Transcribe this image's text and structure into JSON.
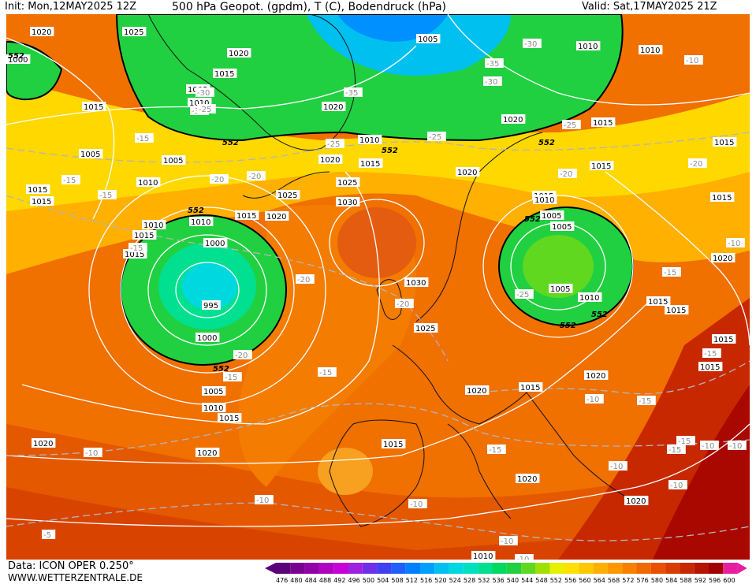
{
  "header": {
    "init": "Init: Mon,12MAY2025 12Z",
    "title": "500 hPa Geopot. (gpdm), T (C), Bodendruck (hPa)",
    "valid": "Valid: Sat,17MAY2025 21Z"
  },
  "footer": {
    "data": "Data: ICON OPER 0.250°",
    "site": "WWW.WETTERZENTRALE.DE"
  },
  "legend": {
    "ticks": [
      "476",
      "480",
      "484",
      "488",
      "492",
      "496",
      "500",
      "504",
      "508",
      "512",
      "516",
      "520",
      "524",
      "528",
      "532",
      "536",
      "540",
      "544",
      "548",
      "552",
      "556",
      "560",
      "564",
      "568",
      "572",
      "576",
      "580",
      "584",
      "588",
      "592",
      "596",
      "600"
    ],
    "colors": [
      "#5a007a",
      "#7a0090",
      "#9400a8",
      "#b000c0",
      "#c800d8",
      "#a020e0",
      "#7030e8",
      "#4040f0",
      "#2060f8",
      "#0080ff",
      "#00a0ff",
      "#00c0f0",
      "#00d8e0",
      "#00e0c0",
      "#00e090",
      "#00d860",
      "#20d040",
      "#60d820",
      "#a0e000",
      "#e8f000",
      "#ffe000",
      "#ffc800",
      "#ffb000",
      "#ff9800",
      "#f88000",
      "#f06800",
      "#e85000",
      "#d83c00",
      "#c82800",
      "#b41400",
      "#a00000",
      "#e81ea0"
    ]
  },
  "pressure_labels": [
    {
      "text": "1025"
    },
    {
      "text": "1020"
    },
    {
      "text": "1005"
    },
    {
      "text": "1010"
    },
    {
      "text": "1015"
    },
    {
      "text": "1005"
    },
    {
      "text": "1010"
    },
    {
      "text": "1015"
    },
    {
      "text": "1000"
    },
    {
      "text": "1005"
    },
    {
      "text": "1010"
    },
    {
      "text": "1015"
    },
    {
      "text": "1025"
    },
    {
      "text": "1030"
    },
    {
      "text": "1020"
    },
    {
      "text": "1025"
    },
    {
      "text": "1020"
    },
    {
      "text": "1010"
    },
    {
      "text": "1015"
    },
    {
      "text": "1005"
    },
    {
      "text": "1010"
    },
    {
      "text": "1010"
    },
    {
      "text": "1015"
    },
    {
      "text": "1000"
    },
    {
      "text": "995"
    },
    {
      "text": "1000"
    },
    {
      "text": "1005"
    },
    {
      "text": "1010"
    },
    {
      "text": "1015"
    },
    {
      "text": "1015"
    },
    {
      "text": "1020"
    },
    {
      "text": "1020"
    },
    {
      "text": "1030"
    },
    {
      "text": "1025"
    },
    {
      "text": "1020"
    },
    {
      "text": "1020"
    },
    {
      "text": "1015"
    },
    {
      "text": "1020"
    },
    {
      "text": "1015"
    },
    {
      "text": "1015"
    },
    {
      "text": "1010"
    },
    {
      "text": "1005"
    },
    {
      "text": "1005"
    },
    {
      "text": "1010"
    },
    {
      "text": "1015"
    },
    {
      "text": "1015"
    },
    {
      "text": "1020"
    },
    {
      "text": "1020"
    },
    {
      "text": "1015"
    },
    {
      "text": "1020"
    },
    {
      "text": "1020"
    },
    {
      "text": "1015"
    },
    {
      "text": "1010"
    },
    {
      "text": "1015"
    },
    {
      "text": "1015"
    },
    {
      "text": "1020"
    },
    {
      "text": "1005"
    },
    {
      "text": "1010"
    },
    {
      "text": "1020"
    },
    {
      "text": "1015"
    },
    {
      "text": "1015"
    },
    {
      "text": "1015"
    },
    {
      "text": "1015"
    }
  ],
  "temp_labels": [
    {
      "text": "-30"
    },
    {
      "text": "-35"
    },
    {
      "text": "-30"
    },
    {
      "text": "-30"
    },
    {
      "text": "-35"
    },
    {
      "text": "-25"
    },
    {
      "text": "-25"
    },
    {
      "text": "-30"
    },
    {
      "text": "-25"
    },
    {
      "text": "-25"
    },
    {
      "text": "-20"
    },
    {
      "text": "-15"
    },
    {
      "text": "-15"
    },
    {
      "text": "-15"
    },
    {
      "text": "-20"
    },
    {
      "text": "-20"
    },
    {
      "text": "-15"
    },
    {
      "text": "-20"
    },
    {
      "text": "-15"
    },
    {
      "text": "-20"
    },
    {
      "text": "-20"
    },
    {
      "text": "-15"
    },
    {
      "text": "-20"
    },
    {
      "text": "-25"
    },
    {
      "text": "-15"
    },
    {
      "text": "-10"
    },
    {
      "text": "-10"
    },
    {
      "text": "-15"
    },
    {
      "text": "-15"
    },
    {
      "text": "-10"
    },
    {
      "text": "-10"
    },
    {
      "text": "-15"
    },
    {
      "text": "-10"
    },
    {
      "text": "-10"
    },
    {
      "text": "-10"
    },
    {
      "text": "-5"
    },
    {
      "text": "-10"
    },
    {
      "text": "-10"
    },
    {
      "text": "-10"
    },
    {
      "text": "-10"
    },
    {
      "text": "-15"
    },
    {
      "text": "-15"
    },
    {
      "text": "-10"
    },
    {
      "text": "-10"
    }
  ],
  "geo_labels": [
    {
      "text": "552"
    },
    {
      "text": "552"
    },
    {
      "text": "552"
    },
    {
      "text": "552"
    },
    {
      "text": "552"
    },
    {
      "text": "552"
    },
    {
      "text": "552"
    },
    {
      "text": "552"
    },
    {
      "text": "552"
    }
  ]
}
